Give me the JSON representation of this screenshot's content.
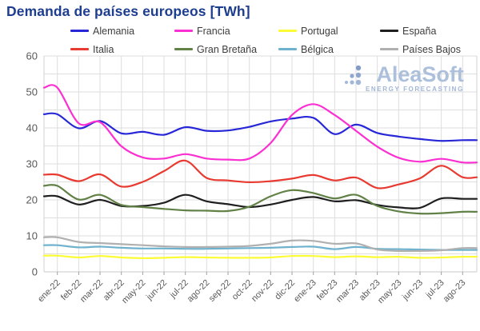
{
  "title": "Demanda de países europeos [TWh]",
  "watermark": {
    "brand": "AleaSoft",
    "tagline": "ENERGY FORECASTING"
  },
  "axis_text_color": "#595959",
  "grid_color": "#dedede",
  "chart_data": {
    "type": "line",
    "title": "Demanda de países europeos [TWh]",
    "xlabel": "",
    "ylabel": "",
    "ylim": [
      0,
      60
    ],
    "yticks": [
      0,
      10,
      20,
      30,
      40,
      50,
      60
    ],
    "grid": true,
    "legend_position": "top",
    "x": [
      "ene-22",
      "feb-22",
      "mar-22",
      "abr-22",
      "may-22",
      "jun-22",
      "jul-22",
      "ago-22",
      "sep-22",
      "oct-22",
      "nov-22",
      "dic-22",
      "ene-23",
      "feb-23",
      "mar-23",
      "abr-23",
      "may-23",
      "jun-23",
      "jul-23",
      "ago-23"
    ],
    "series": [
      {
        "name": "Alemania",
        "color": "#2727d8",
        "values": [
          43.8,
          39.9,
          41.9,
          38.5,
          38.9,
          38.1,
          40.2,
          39.2,
          39.3,
          40.3,
          41.8,
          42.6,
          42.8,
          38.3,
          40.9,
          38.6,
          37.6,
          36.9,
          36.4,
          36.6
        ]
      },
      {
        "name": "Francia",
        "color": "#fb2fd2",
        "values": [
          51.2,
          41.3,
          41.6,
          34.9,
          31.8,
          31.5,
          32.7,
          31.5,
          31.2,
          31.5,
          35.8,
          43.6,
          46.6,
          43.6,
          39.2,
          34.8,
          31.7,
          30.6,
          31.4,
          30.4
        ]
      },
      {
        "name": "Portugal",
        "color": "#fbfb36",
        "values": [
          4.5,
          4.0,
          4.4,
          4.0,
          3.8,
          3.9,
          4.1,
          4.0,
          3.9,
          3.9,
          4.0,
          4.4,
          4.4,
          4.1,
          4.3,
          4.1,
          4.2,
          3.9,
          4.0,
          4.2
        ]
      },
      {
        "name": "España",
        "color": "#1f1f1f",
        "values": [
          21.0,
          18.7,
          20.0,
          18.3,
          18.3,
          19.2,
          21.4,
          19.6,
          18.8,
          18.0,
          18.7,
          20.0,
          20.8,
          19.6,
          19.9,
          18.6,
          17.9,
          17.8,
          20.4,
          20.3
        ]
      },
      {
        "name": "Italia",
        "color": "#e83a30",
        "values": [
          27.0,
          25.2,
          27.1,
          23.7,
          25.0,
          28.0,
          30.9,
          26.1,
          25.4,
          24.9,
          25.2,
          25.9,
          26.9,
          25.4,
          26.2,
          23.3,
          24.3,
          26.0,
          29.5,
          26.3
        ]
      },
      {
        "name": "Gran Bretaña",
        "color": "#618147",
        "values": [
          23.9,
          20.1,
          21.4,
          18.6,
          18.0,
          17.5,
          17.1,
          17.0,
          16.9,
          18.1,
          21.0,
          22.7,
          21.9,
          20.4,
          21.4,
          18.3,
          16.8,
          16.2,
          16.3,
          16.7
        ]
      },
      {
        "name": "Bélgica",
        "color": "#6fb2cd",
        "values": [
          7.4,
          6.8,
          7.0,
          6.7,
          6.5,
          6.5,
          6.4,
          6.4,
          6.5,
          6.6,
          6.7,
          6.9,
          7.0,
          6.3,
          6.9,
          6.4,
          6.3,
          6.2,
          6.1,
          6.1
        ]
      },
      {
        "name": "Países Bajos",
        "color": "#b0b0b0",
        "values": [
          9.6,
          8.3,
          8.0,
          7.7,
          7.4,
          7.1,
          6.9,
          6.9,
          7.0,
          7.2,
          7.8,
          8.7,
          8.6,
          7.8,
          7.9,
          6.2,
          5.8,
          5.8,
          6.0,
          6.6
        ]
      }
    ]
  }
}
